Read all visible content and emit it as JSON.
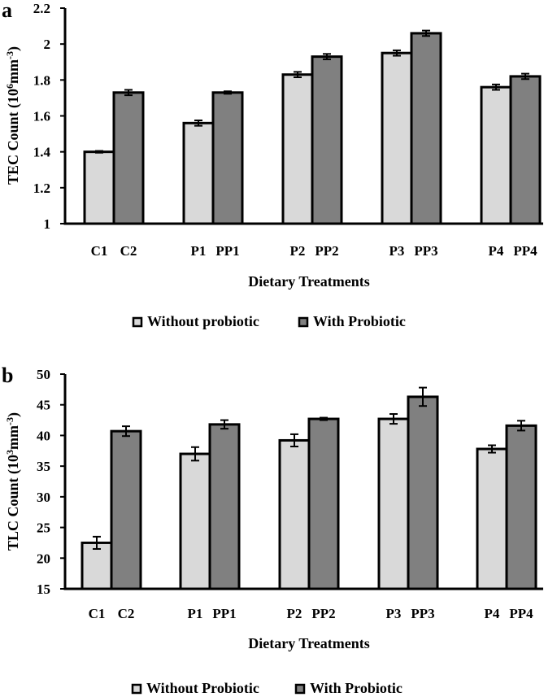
{
  "chart_data": [
    {
      "type": "bar",
      "panel_label": "a",
      "ylabel_main": "TEC Count (10",
      "ylabel_sup": "6",
      "ylabel_unit": "mm",
      "ylabel_unit_sup": "-3",
      "ylabel_close": ")",
      "xlabel": "Dietary Treatments",
      "ylim": [
        1,
        2.2
      ],
      "yticks": [
        "1",
        "1.2",
        "1.4",
        "1.6",
        "1.8",
        "2",
        "2.2"
      ],
      "ytick_values": [
        1,
        1.2,
        1.4,
        1.6,
        1.8,
        2,
        2.2
      ],
      "categories": [
        [
          "C1",
          "C2"
        ],
        [
          "P1",
          "PP1"
        ],
        [
          "P2",
          "PP2"
        ],
        [
          "P3",
          "PP3"
        ],
        [
          "P4",
          "PP4"
        ]
      ],
      "series": [
        {
          "name": "Without probiotic",
          "color": "#d9d9d9",
          "values": [
            1.4,
            1.56,
            1.83,
            1.95,
            1.76
          ],
          "errors": [
            0.005,
            0.015,
            0.015,
            0.015,
            0.015
          ]
        },
        {
          "name": "With Probiotic",
          "color": "#808080",
          "values": [
            1.73,
            1.73,
            1.93,
            2.06,
            1.82
          ],
          "errors": [
            0.015,
            0.007,
            0.015,
            0.015,
            0.015
          ]
        }
      ],
      "grid": false,
      "legend_position": "bottom"
    },
    {
      "type": "bar",
      "panel_label": "b",
      "ylabel_main": "TLC Count (10",
      "ylabel_sup": "3",
      "ylabel_unit": "mm",
      "ylabel_unit_sup": "-3",
      "ylabel_close": ")",
      "xlabel": "Dietary Treatments",
      "ylim": [
        15,
        50
      ],
      "yticks": [
        "15",
        "20",
        "25",
        "30",
        "35",
        "40",
        "45",
        "50"
      ],
      "ytick_values": [
        15,
        20,
        25,
        30,
        35,
        40,
        45,
        50
      ],
      "categories": [
        [
          "C1",
          "C2"
        ],
        [
          "P1",
          "PP1"
        ],
        [
          "P2",
          "PP2"
        ],
        [
          "P3",
          "PP3"
        ],
        [
          "P4",
          "PP4"
        ]
      ],
      "series": [
        {
          "name": "Without Probiotic",
          "color": "#d9d9d9",
          "values": [
            22.5,
            37.0,
            39.2,
            42.7,
            37.8
          ],
          "errors": [
            1.0,
            1.1,
            1.0,
            0.8,
            0.6
          ]
        },
        {
          "name": "With Probiotic",
          "color": "#808080",
          "values": [
            40.7,
            41.8,
            42.7,
            46.3,
            41.6
          ],
          "errors": [
            0.8,
            0.7,
            0.2,
            1.5,
            0.8
          ]
        }
      ],
      "grid": false,
      "legend_position": "bottom"
    }
  ]
}
